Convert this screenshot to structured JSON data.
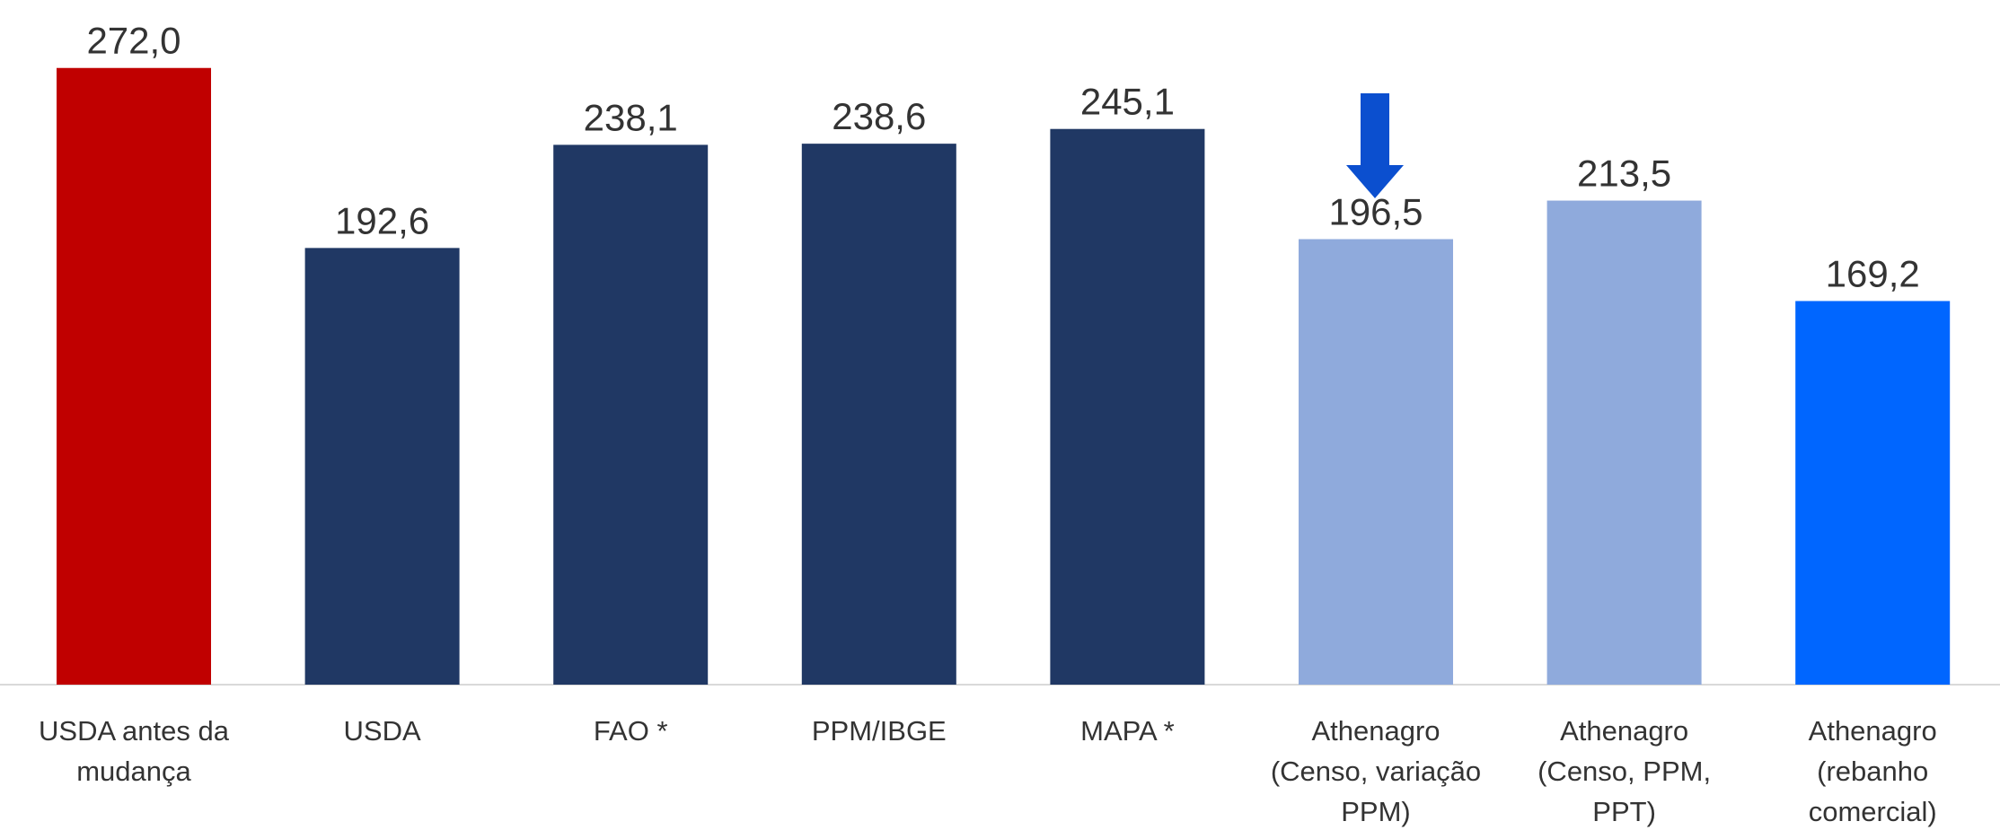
{
  "chart_data": {
    "type": "bar",
    "categories": [
      "USDA antes da mudança",
      "USDA",
      "FAO *",
      "PPM/IBGE",
      "MAPA *",
      "Athenagro (Censo, variação PPM)",
      "Athenagro (Censo, PPM, PPT)",
      "Athenagro (rebanho comercial)"
    ],
    "values": [
      272.0,
      192.6,
      238.1,
      238.6,
      245.1,
      196.5,
      213.5,
      169.2
    ],
    "value_labels": [
      "272,0",
      "192,6",
      "238,1",
      "238,6",
      "245,1",
      "196,5",
      "213,5",
      "169,2"
    ],
    "colors": [
      "#c00000",
      "#203864",
      "#203864",
      "#203864",
      "#203864",
      "#8faadc",
      "#8faadc",
      "#0066ff"
    ],
    "ylim": [
      0,
      300
    ],
    "grid": false
  }
}
